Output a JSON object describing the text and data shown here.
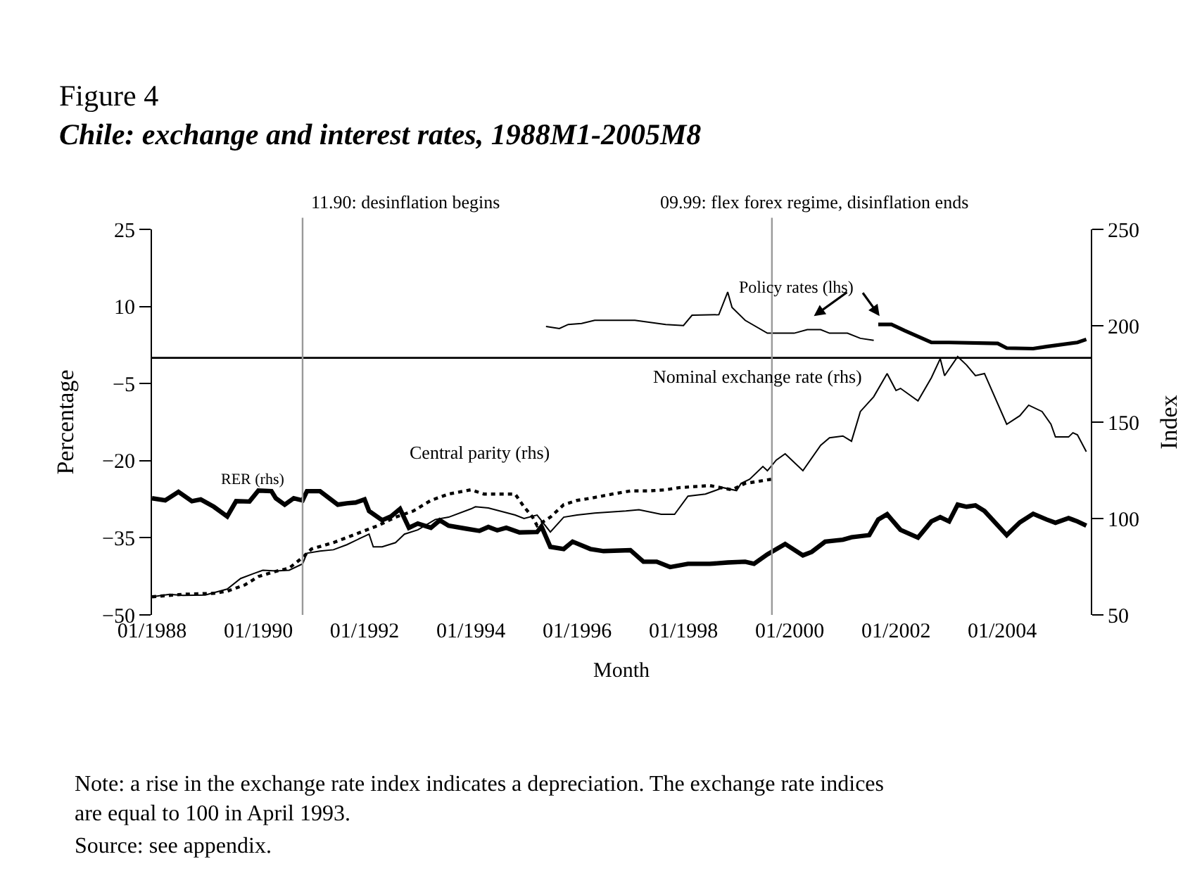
{
  "chart_data": {
    "type": "line",
    "title": "Figure 4",
    "subtitle": "Chile: exchange and interest rates, 1988M1-2005M8",
    "xlabel": "Month",
    "ylabel": "Percentage",
    "y2label": "Index",
    "xlim": [
      "1988-01",
      "2005-09"
    ],
    "xticks": [
      {
        "value": "1988-01",
        "label": "01/1988"
      },
      {
        "value": "1990-01",
        "label": "01/1990"
      },
      {
        "value": "1992-01",
        "label": "01/1992"
      },
      {
        "value": "1994-01",
        "label": "01/1994"
      },
      {
        "value": "1996-01",
        "label": "01/1996"
      },
      {
        "value": "1998-01",
        "label": "01/1998"
      },
      {
        "value": "2000-01",
        "label": "01/2000"
      },
      {
        "value": "2002-01",
        "label": "01/2002"
      },
      {
        "value": "2004-01",
        "label": "01/2004"
      }
    ],
    "ylim": [
      -50,
      25
    ],
    "yticks": [
      25,
      10,
      -5,
      -20,
      -35,
      -50
    ],
    "y2lim": [
      50,
      250
    ],
    "y2ticks": [
      50,
      100,
      150,
      200,
      250
    ],
    "marker": "none",
    "series": [
      {
        "name": "RER (rhs)",
        "color": "#000000",
        "axis": "y2",
        "line_style": "solid",
        "x": [
          "1988-01",
          "1988-04",
          "1988-07",
          "1988-10",
          "1988-12",
          "1989-03",
          "1989-06",
          "1989-08",
          "1989-11",
          "1990-01",
          "1990-04",
          "1990-05",
          "1990-07",
          "1990-09",
          "1990-11",
          "1990-12",
          "1991-03",
          "1991-07",
          "1991-09",
          "1991-11",
          "1992-01",
          "1992-02",
          "1992-05",
          "1992-07",
          "1992-09",
          "1992-11",
          "1993-01",
          "1993-04",
          "1993-06",
          "1993-08",
          "1993-12",
          "1994-03",
          "1994-05",
          "1994-07",
          "1994-09",
          "1994-12",
          "1995-04",
          "1995-05",
          "1995-07",
          "1995-10",
          "1995-12",
          "1996-04",
          "1996-07",
          "1997-01",
          "1997-04",
          "1997-07",
          "1997-10",
          "1998-02",
          "1998-07",
          "1998-11",
          "1999-03",
          "1999-05",
          "1999-08",
          "1999-12",
          "2000-04",
          "2000-06",
          "2000-09",
          "2001-01",
          "2001-03",
          "2001-07",
          "2001-09",
          "2001-11",
          "2002-02",
          "2002-06",
          "2002-09",
          "2002-11",
          "2003-01",
          "2003-03",
          "2003-05",
          "2003-07",
          "2003-09",
          "2004-02",
          "2004-05",
          "2004-08",
          "2004-11",
          "2005-01",
          "2005-04",
          "2005-06",
          "2005-08"
        ],
        "values": [
          110.5,
          109.4,
          113.8,
          109,
          109.9,
          106.1,
          101.1,
          109,
          108.8,
          114.5,
          114.2,
          110.5,
          107.2,
          110.5,
          109.4,
          114.2,
          114.2,
          107.2,
          107.9,
          108.3,
          109.9,
          103.9,
          99.1,
          101.1,
          105,
          95.2,
          97.4,
          95.2,
          99.1,
          96.3,
          94.7,
          93.6,
          95.6,
          93.9,
          95.2,
          92.8,
          93.0,
          95.9,
          85.3,
          84.2,
          88,
          84.2,
          83.1,
          83.6,
          77.6,
          77.6,
          74.8,
          76.5,
          76.5,
          77.2,
          77.6,
          76.5,
          81.4,
          86.8,
          80.9,
          82.7,
          88,
          89,
          90.3,
          91.4,
          99.5,
          102.2,
          94.1,
          90.1,
          98.5,
          100.7,
          98.5,
          107.2,
          106.1,
          106.8,
          103.9,
          91.4,
          98,
          102.4,
          99.5,
          97.8,
          100.2,
          98.5,
          96.3
        ]
      },
      {
        "name": "Nominal exchange rate (rhs)",
        "color": "#000000",
        "axis": "y2",
        "line_style": "solid",
        "x": [
          "1988-01",
          "1988-05",
          "1988-08",
          "1989-01",
          "1989-06",
          "1989-09",
          "1989-12",
          "1990-02",
          "1990-05",
          "1990-08",
          "1990-11",
          "1990-12",
          "1991-03",
          "1991-06",
          "1991-09",
          "1991-12",
          "1992-02",
          "1992-03",
          "1992-05",
          "1992-08",
          "1992-10",
          "1993-01",
          "1993-05",
          "1993-08",
          "1994-01",
          "1994-02",
          "1994-05",
          "1994-11",
          "1995-01",
          "1995-04",
          "1995-07",
          "1995-10",
          "1996-01",
          "1996-05",
          "1996-12",
          "1997-03",
          "1997-08",
          "1997-11",
          "1998-02",
          "1998-06",
          "1998-10",
          "1999-01",
          "1999-02",
          "1999-04",
          "1999-07",
          "1999-08",
          "1999-10",
          "1999-12",
          "2000-04",
          "2000-08",
          "2000-10",
          "2001-01",
          "2001-03",
          "2001-05",
          "2001-08",
          "2001-11",
          "2002-01",
          "2002-02",
          "2002-06",
          "2002-09",
          "2002-11",
          "2002-12",
          "2003-03",
          "2003-05",
          "2003-07",
          "2003-09",
          "2004-02",
          "2004-05",
          "2004-07",
          "2004-10",
          "2004-12",
          "2005-01",
          "2005-04",
          "2005-05",
          "2005-06",
          "2005-08"
        ],
        "values": [
          59.4,
          60.7,
          60.1,
          60.3,
          63.4,
          68.9,
          71.5,
          73.2,
          72.8,
          73.2,
          76.5,
          82,
          83.1,
          83.8,
          86.4,
          89.7,
          91.9,
          85.3,
          85.3,
          87.5,
          91.9,
          94.1,
          99.5,
          100.7,
          105,
          106.1,
          105.5,
          101.8,
          100,
          101.8,
          93,
          100.7,
          101.8,
          102.8,
          103.9,
          104.6,
          102.2,
          102.2,
          111.6,
          112.7,
          116,
          114.5,
          118.2,
          120.4,
          127,
          124.8,
          130.3,
          133.6,
          124.8,
          138,
          141.9,
          142.8,
          140.1,
          155.5,
          163.2,
          175.2,
          166.4,
          167.5,
          161,
          173,
          182.9,
          174.1,
          184,
          179.6,
          174.1,
          175.2,
          148.9,
          153.3,
          158.8,
          155.5,
          148.9,
          142.3,
          142.3,
          144.5,
          143.4,
          134.7
        ]
      },
      {
        "name": "Central parity (rhs)",
        "color": "#000000",
        "axis": "y2",
        "line_style": "dotted",
        "x": [
          "1988-01",
          "1988-08",
          "1989-03",
          "1989-06",
          "1989-10",
          "1990-01",
          "1990-05",
          "1990-08",
          "1990-11",
          "1991-01",
          "1991-06",
          "1991-11",
          "1992-04",
          "1992-08",
          "1992-12",
          "1993-04",
          "1993-08",
          "1994-01",
          "1994-04",
          "1994-08",
          "1994-11",
          "1995-01",
          "1995-03",
          "1995-04",
          "1995-07",
          "1995-10",
          "1996-01",
          "1996-04",
          "1996-09",
          "1997-01",
          "1997-05",
          "1997-09",
          "1997-12",
          "1998-07",
          "1998-12",
          "1999-03",
          "1999-09"
        ],
        "values": [
          59.4,
          60.7,
          61.2,
          62.3,
          65.6,
          69.9,
          72.6,
          74.3,
          79.8,
          84.2,
          87.5,
          91.9,
          96.3,
          100.7,
          103.9,
          109.4,
          112.7,
          114.9,
          112.7,
          112.7,
          112.7,
          106.1,
          100.7,
          96.3,
          100.7,
          107.2,
          109.4,
          110.5,
          112.7,
          114.3,
          114.3,
          114.9,
          116,
          117.1,
          114.9,
          118.2,
          120.4
        ]
      },
      {
        "name": "Policy rates (lhs)",
        "color": "#000000",
        "axis": "y",
        "line_style": "solid",
        "x": [
          "1995-06",
          "1995-09",
          "1995-11",
          "1996-02",
          "1996-05",
          "1997-02",
          "1997-09",
          "1998-01",
          "1998-03",
          "1998-09",
          "1998-11",
          "1998-12",
          "1999-03",
          "1999-08",
          "2000-02",
          "2000-05",
          "2000-08",
          "2000-10",
          "2001-02",
          "2001-05",
          "2001-08"
        ],
        "values": [
          6.1,
          5.7,
          6.5,
          6.7,
          7.3,
          7.3,
          6.5,
          6.3,
          8.3,
          8.4,
          12.8,
          9.8,
          7.3,
          4.8,
          4.8,
          5.5,
          5.5,
          4.8,
          4.8,
          3.8,
          3.4
        ]
      },
      {
        "color": "#000000",
        "axis": "y",
        "line_style": "solid",
        "x": [
          "2001-09",
          "2001-12",
          "2002-03",
          "2002-09",
          "2003-01",
          "2003-12",
          "2004-02",
          "2004-08",
          "2004-11",
          "2005-06",
          "2005-08"
        ],
        "values": [
          6.5,
          6.5,
          5.3,
          3,
          3,
          2.8,
          1.9,
          1.8,
          2.2,
          3,
          3.6
        ]
      }
    ],
    "ref_lines": [
      {
        "axis": "y",
        "value": 0,
        "color": "#000000"
      },
      {
        "axis": "x",
        "value": "1990-11",
        "label": "11.90: desinflation begins",
        "color": "#999999"
      },
      {
        "axis": "x",
        "value": "1999-09",
        "label": "09.99: flex forex regime, disinflation ends",
        "color": "#999999"
      }
    ],
    "annotations": [
      "Note: a rise in the exchange rate index indicates a depreciation. The exchange rate indices are equal to 100 in April 1993.",
      "Source: see appendix."
    ]
  }
}
